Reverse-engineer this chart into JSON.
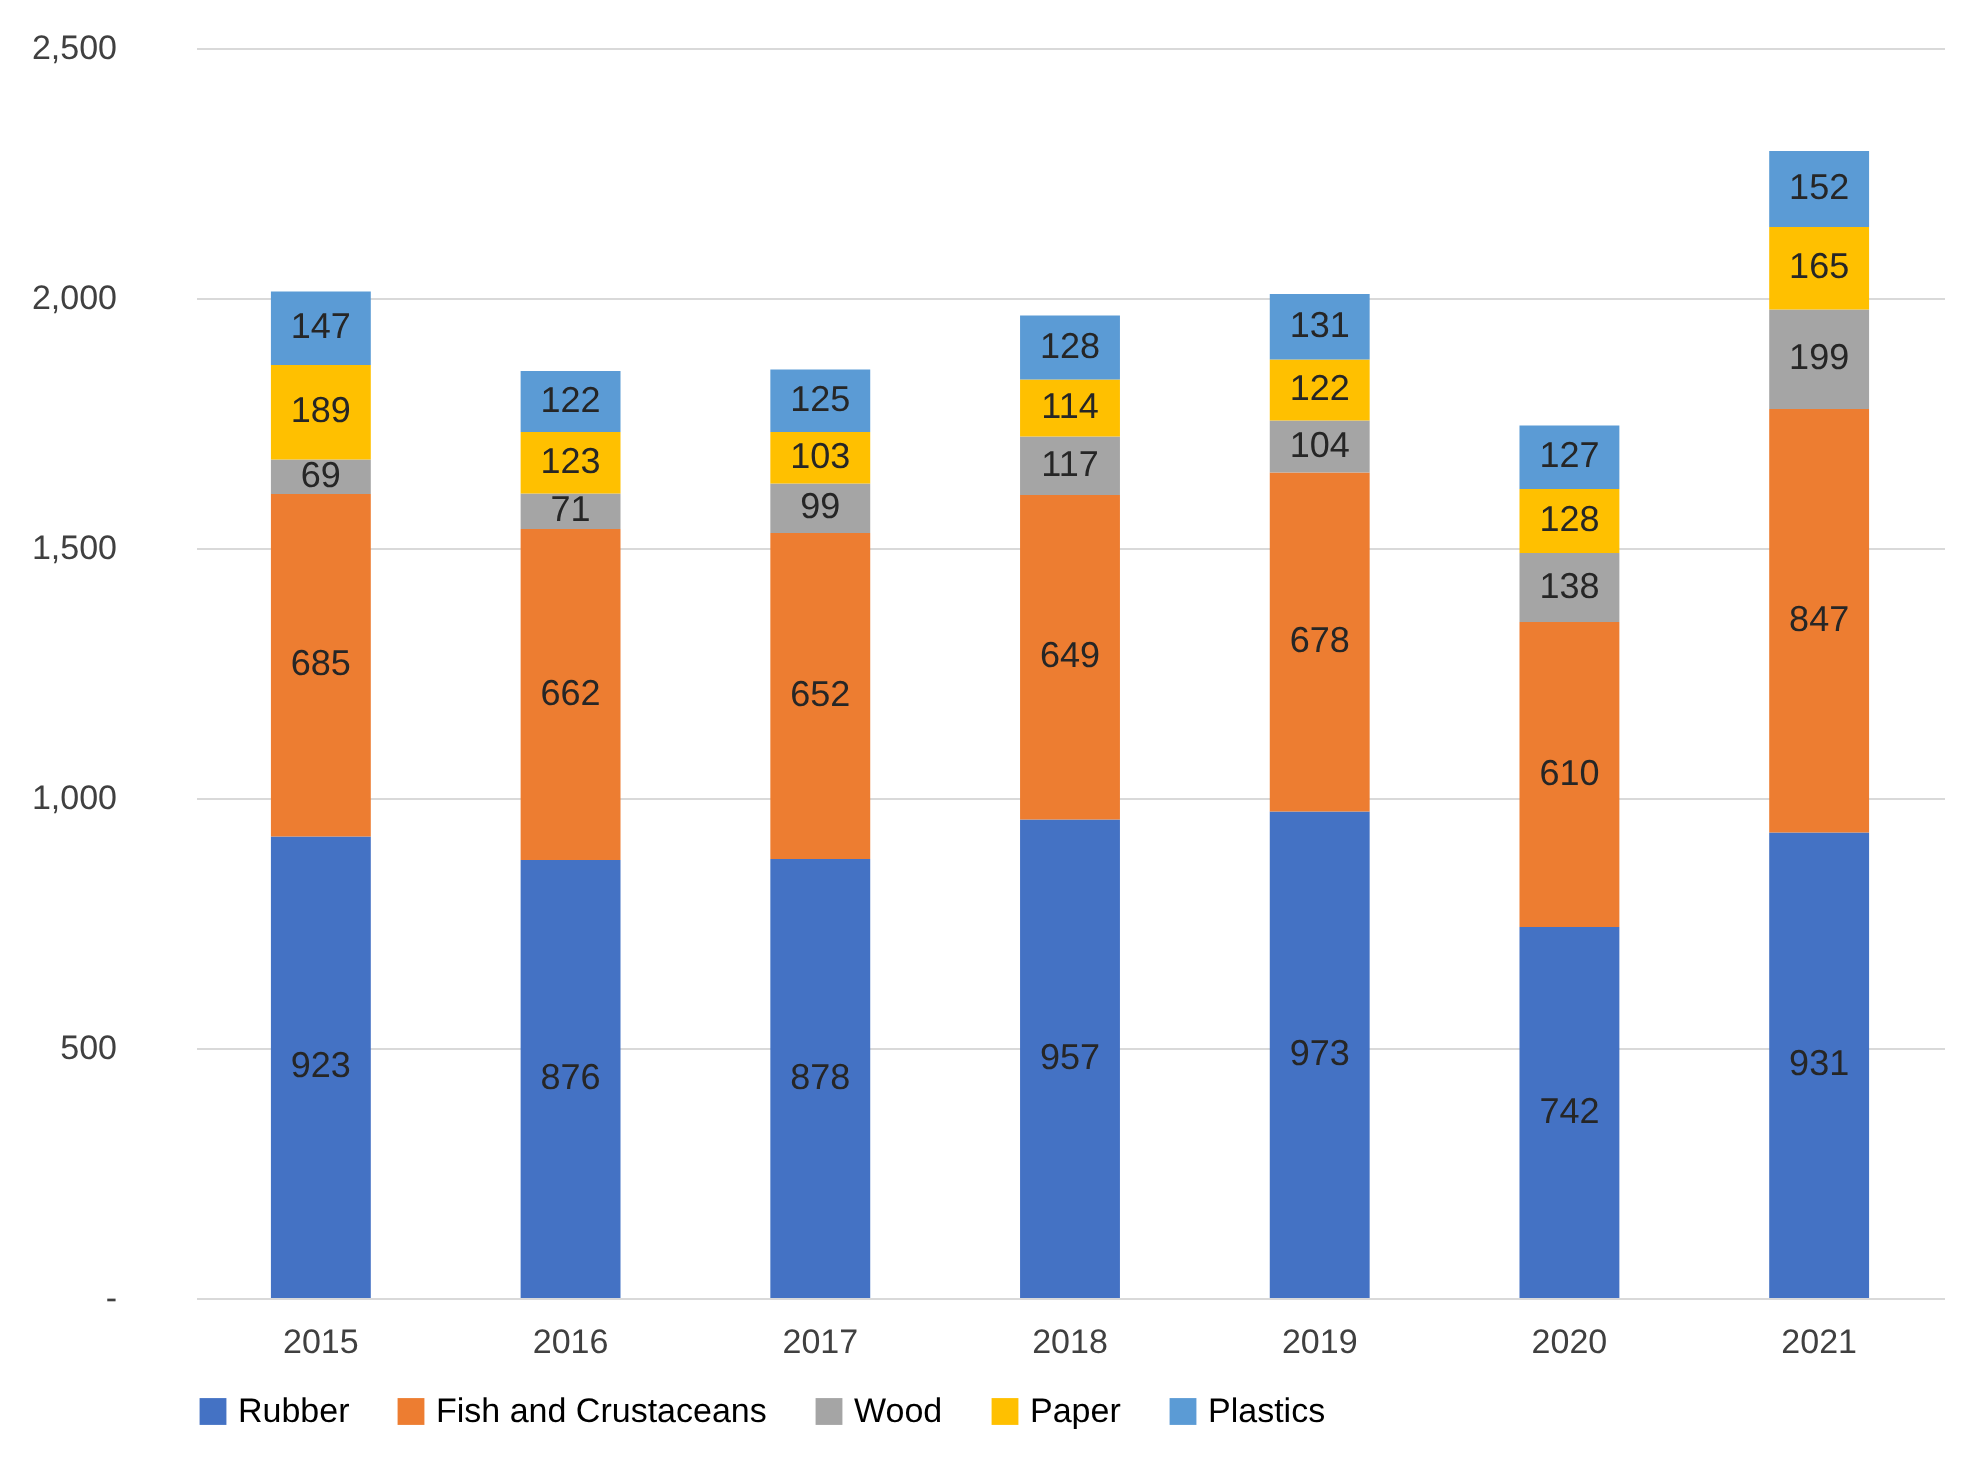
{
  "chart_data": {
    "type": "bar",
    "stacked": true,
    "categories": [
      "2015",
      "2016",
      "2017",
      "2018",
      "2019",
      "2020",
      "2021"
    ],
    "series": [
      {
        "name": "Rubber",
        "color": "#4472c4",
        "values": [
          923,
          876,
          878,
          957,
          973,
          742,
          931
        ]
      },
      {
        "name": "Fish and Crustaceans",
        "color": "#ed7d31",
        "values": [
          685,
          662,
          652,
          649,
          678,
          610,
          847
        ]
      },
      {
        "name": "Wood",
        "color": "#a5a5a5",
        "values": [
          69,
          71,
          99,
          117,
          104,
          138,
          199
        ]
      },
      {
        "name": "Paper",
        "color": "#ffc000",
        "values": [
          189,
          123,
          103,
          114,
          122,
          128,
          165
        ]
      },
      {
        "name": "Plastics",
        "color": "#5b9bd5",
        "values": [
          147,
          122,
          125,
          128,
          131,
          127,
          152
        ]
      }
    ],
    "ylim": [
      0,
      2500
    ],
    "yticks": [
      {
        "value": 0,
        "label": "-"
      },
      {
        "value": 500,
        "label": "500"
      },
      {
        "value": 1000,
        "label": "1,000"
      },
      {
        "value": 1500,
        "label": "1,500"
      },
      {
        "value": 2000,
        "label": "2,000"
      },
      {
        "value": 2500,
        "label": "2,500"
      }
    ],
    "grid": "y",
    "legend": "bottom",
    "data_labels": true
  }
}
